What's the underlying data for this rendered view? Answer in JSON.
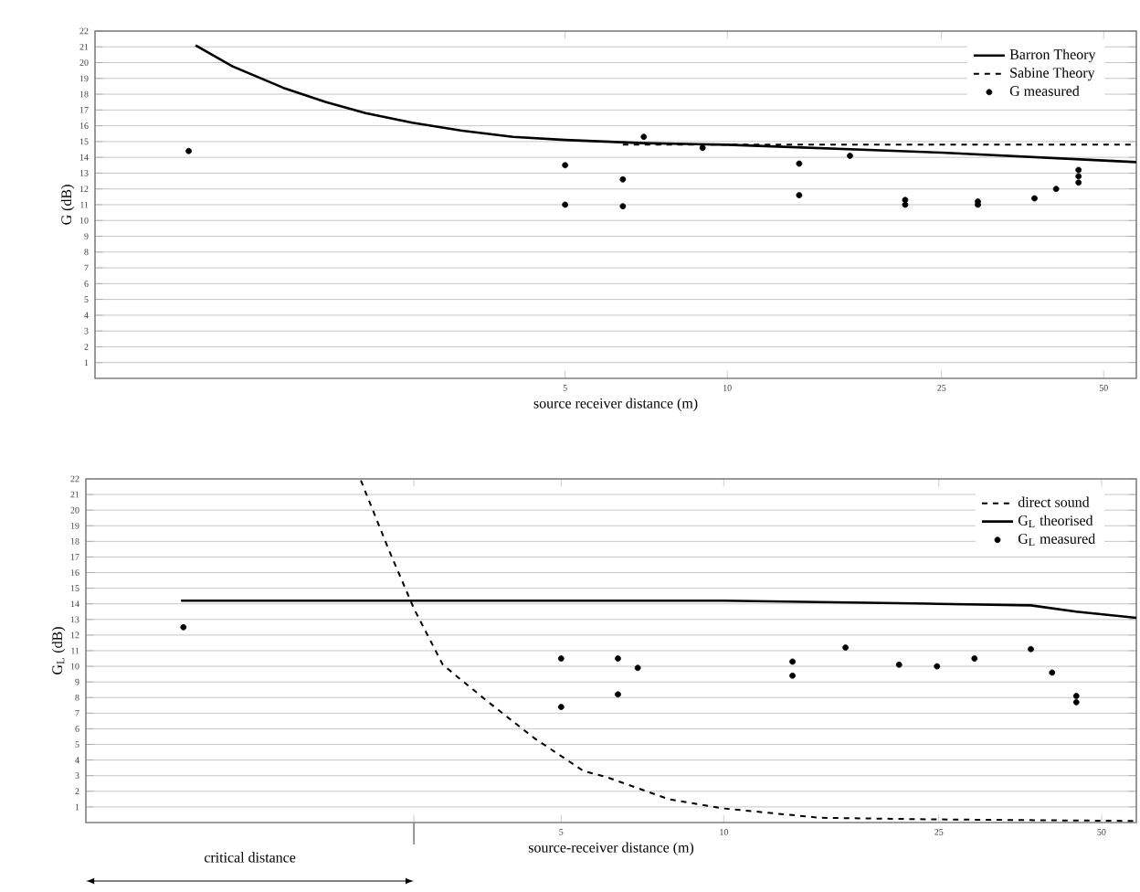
{
  "chart_data": [
    {
      "type": "line",
      "xlabel": "source receiver distance (m)",
      "ylabel": "G (dB)",
      "log": "x",
      "grid": "y",
      "legend": "top right",
      "xlim": [
        0.67,
        57.5
      ],
      "xticks": [
        5,
        10,
        25,
        50
      ],
      "ylim": [
        0,
        22
      ],
      "yticks": [
        1,
        2,
        3,
        4,
        5,
        6,
        7,
        8,
        9,
        10,
        11,
        12,
        13,
        14,
        15,
        16,
        17,
        18,
        19,
        20,
        21,
        22
      ],
      "series": [
        {
          "name": "Barron Theory",
          "color": "#000000",
          "line_style": "solid",
          "marker": "none",
          "x": [
            1.03,
            1.2,
            1.5,
            1.8,
            2.13,
            2.6,
            3.2,
            4,
            5,
            7,
            10,
            25,
            50,
            57.5
          ],
          "values": [
            21.1,
            19.8,
            18.4,
            17.5,
            16.8,
            16.2,
            15.7,
            15.3,
            15.1,
            14.9,
            14.8,
            14.3,
            13.8,
            13.7
          ]
        },
        {
          "name": "Sabine Theory",
          "color": "#000000",
          "line_style": "dashed",
          "marker": "none",
          "x": [
            6.4,
            57.5
          ],
          "values": [
            14.8,
            14.8
          ]
        },
        {
          "name": "G measured",
          "type": "scatter",
          "color": "#000000",
          "marker": "circle",
          "x": [
            1.0,
            5,
            5,
            6.4,
            6.4,
            7.0,
            9.0,
            13.6,
            13.6,
            16.9,
            21.4,
            21.4,
            29.2,
            29.2,
            37.2,
            40.8,
            44.9,
            44.9,
            44.9
          ],
          "values": [
            14.4,
            13.5,
            11.0,
            12.6,
            10.9,
            15.3,
            14.6,
            13.6,
            11.6,
            14.1,
            11.3,
            11.0,
            11.2,
            11.0,
            11.4,
            12.0,
            13.2,
            12.8,
            12.4
          ]
        }
      ]
    },
    {
      "type": "line",
      "xlabel": "source-receiver distance (m)",
      "ylabel": "G$_{L}$ (dB)",
      "log": "x",
      "grid": "y",
      "legend": "top right",
      "xlim": [
        0.66,
        58
      ],
      "xticks": [
        {
          "value": 2.67,
          "label": null
        },
        5,
        10,
        25,
        50
      ],
      "ylim": [
        0,
        22
      ],
      "yticks": [
        1,
        2,
        3,
        4,
        5,
        6,
        7,
        8,
        9,
        10,
        11,
        12,
        13,
        14,
        15,
        16,
        17,
        18,
        19,
        20,
        21,
        22
      ],
      "annotations": [
        "critical distance"
      ],
      "series": [
        {
          "name": "direct sound",
          "color": "#000000",
          "line_style": "dashed",
          "marker": "none",
          "x": [
            2.13,
            2.39,
            2.67,
            3.02,
            3.64,
            4.46,
            5.5,
            6.08,
            7.9,
            10,
            15.1,
            24.6,
            58
          ],
          "values": [
            21.9,
            17.6,
            13.7,
            10.1,
            7.8,
            5.4,
            3.3,
            2.9,
            1.5,
            0.9,
            0.3,
            0.2,
            0.1
          ]
        },
        {
          "name": "G$_{L}$ theorised",
          "color": "#000000",
          "line_style": "solid",
          "marker": "none",
          "x": [
            0.99,
            5,
            10,
            25,
            37,
            44.9,
            58
          ],
          "values": [
            14.2,
            14.2,
            14.2,
            14.0,
            13.9,
            13.5,
            13.1
          ]
        },
        {
          "name": "G$_{L}$ measured",
          "type": "scatter",
          "color": "#000000",
          "marker": "circle",
          "x": [
            1.0,
            5,
            5,
            6.37,
            6.37,
            6.93,
            13.4,
            13.4,
            16.8,
            21.1,
            24.8,
            29.1,
            37.0,
            40.5,
            44.9,
            44.9
          ],
          "values": [
            12.5,
            10.5,
            7.4,
            10.5,
            8.2,
            9.9,
            10.3,
            9.4,
            11.2,
            10.1,
            10.0,
            10.5,
            11.1,
            9.6,
            8.1,
            7.7
          ]
        }
      ]
    }
  ]
}
